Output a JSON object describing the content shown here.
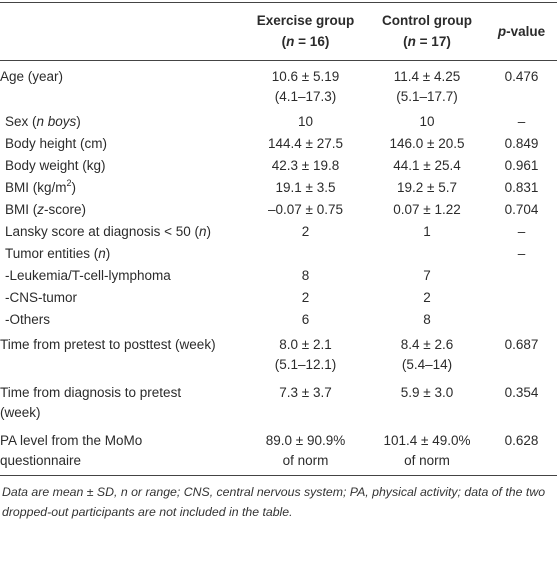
{
  "table": {
    "header": [
      [
        "Exercise group",
        [
          {
            "text": "("
          },
          {
            "text": "n",
            "italic": true
          },
          {
            "text": " = 16)"
          }
        ]
      ],
      [
        "Control group",
        [
          {
            "text": "("
          },
          {
            "text": "n",
            "italic": true
          },
          {
            "text": " = 17)"
          }
        ]
      ],
      [
        {
          "text": "p",
          "italic": true
        },
        {
          "text": "-value"
        }
      ]
    ],
    "rows": [
      [
        "Age (year)",
        [
          "10.6 ± 5.19",
          "(4.1–17.3)"
        ],
        [
          "11.4 ± 4.25",
          "(5.1–17.7)"
        ],
        "0.476"
      ],
      [
        [
          {
            "text": "Sex ("
          },
          {
            "text": "n boys",
            "italic": true
          },
          {
            "text": ")"
          }
        ],
        "10",
        "10",
        "–"
      ],
      [
        "Body height (cm)",
        "144.4 ± 27.5",
        "146.0 ± 20.5",
        "0.849"
      ],
      [
        "Body weight (kg)",
        "42.3 ± 19.8",
        "44.1 ± 25.4",
        "0.961"
      ],
      [
        [
          {
            "text": "BMI (kg/m"
          },
          {
            "text": "2",
            "superscript": true
          },
          {
            "text": ")"
          }
        ],
        "19.1 ± 3.5",
        "19.2 ± 5.7",
        "0.831"
      ],
      [
        [
          {
            "text": "BMI ("
          },
          {
            "text": "z",
            "italic": true
          },
          {
            "text": "-score)"
          }
        ],
        "–0.07 ± 0.75",
        "0.07 ± 1.22",
        "0.704"
      ],
      [
        [
          {
            "text": "Lansky score at diagnosis < 50 ("
          },
          {
            "text": "n",
            "italic": true
          },
          {
            "text": ")"
          }
        ],
        "2",
        "1",
        "–"
      ],
      [
        [
          {
            "text": "Tumor entities ("
          },
          {
            "text": "n",
            "italic": true
          },
          {
            "text": ")"
          }
        ],
        null,
        null,
        "–"
      ],
      [
        "-Leukemia/T-cell-lymphoma",
        "8",
        "7",
        null
      ],
      [
        "-CNS-tumor",
        "2",
        "2",
        null
      ],
      [
        "-Others",
        "6",
        "8",
        null
      ],
      [
        "Time from pretest to posttest (week)",
        [
          "8.0 ± 2.1",
          "(5.1–12.1)"
        ],
        [
          "8.4 ± 2.6",
          "(5.4–14)"
        ],
        "0.687"
      ],
      [
        [
          "Time from diagnosis to pretest",
          "(week)"
        ],
        "7.3 ± 3.7",
        "5.9 ± 3.0",
        "0.354"
      ],
      [
        [
          "PA level from the MoMo",
          "questionnaire"
        ],
        [
          "89.0 ± 90.9%",
          "of norm"
        ],
        [
          "101.4 ± 49.0%",
          "of norm"
        ],
        "0.628"
      ]
    ],
    "footnote": "Data are mean ± SD, n or range; CNS, central nervous system; PA, physical activity; data of the two dropped-out participants are not included in the table."
  }
}
